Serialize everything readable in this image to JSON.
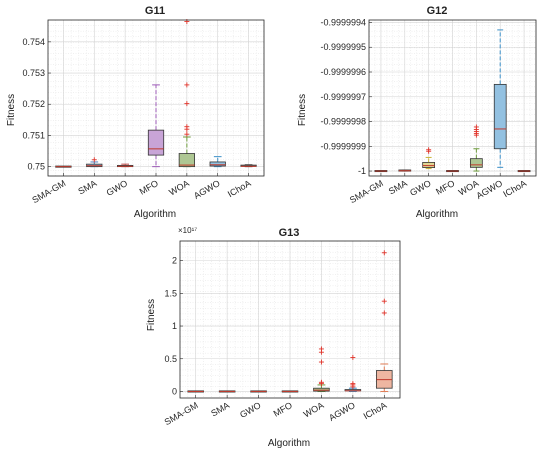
{
  "chart_data": [
    {
      "id": "g11",
      "type": "boxplot",
      "title": "G11",
      "xlabel": "Algorithm",
      "ylabel": "Fitness",
      "categories": [
        "SMA-GM",
        "SMA",
        "GWO",
        "MFO",
        "WOA",
        "AGWO",
        "IChoA"
      ],
      "ylim": [
        0.7497,
        0.7547
      ],
      "yticks": [
        0.75,
        0.751,
        0.752,
        0.753,
        0.754
      ],
      "ytick_labels": [
        "0.75",
        "0.751",
        "0.752",
        "0.753",
        "0.754"
      ],
      "grid": true,
      "boxes": [
        {
          "min": 0.75,
          "q1": 0.75,
          "median": 0.75,
          "q3": 0.75,
          "max": 0.75,
          "outliers": [],
          "color": "#3f3f3f"
        },
        {
          "min": 0.75,
          "q1": 0.75,
          "median": 0.75003,
          "q3": 0.75008,
          "max": 0.75015,
          "outliers": [
            0.75022
          ],
          "color": "#4f7fbf"
        },
        {
          "min": 0.75,
          "q1": 0.75,
          "median": 0.75001,
          "q3": 0.75004,
          "max": 0.75008,
          "outliers": [],
          "color": "#c0504d"
        },
        {
          "min": 0.75,
          "q1": 0.75037,
          "median": 0.75057,
          "q3": 0.75117,
          "max": 0.75262,
          "outliers": [],
          "color": "#9b59b6"
        },
        {
          "min": 0.75,
          "q1": 0.75,
          "median": 0.75005,
          "q3": 0.75042,
          "max": 0.75095,
          "outliers": [
            0.75104,
            0.7512,
            0.75128,
            0.75202,
            0.75262,
            0.75465
          ],
          "color": "#6c9a3a"
        },
        {
          "min": 0.75,
          "q1": 0.75002,
          "median": 0.75006,
          "q3": 0.75015,
          "max": 0.75032,
          "outliers": [],
          "color": "#3a8fc8"
        },
        {
          "min": 0.75,
          "q1": 0.75,
          "median": 0.75001,
          "q3": 0.75003,
          "max": 0.75006,
          "outliers": [],
          "color": "#3f3f3f"
        }
      ]
    },
    {
      "id": "g12",
      "type": "boxplot",
      "title": "G12",
      "xlabel": "Algorithm",
      "ylabel": "Fitness",
      "categories": [
        "SMA-GM",
        "SMA",
        "GWO",
        "MFO",
        "WOA",
        "AGWO",
        "IChoA"
      ],
      "ylim": [
        -1.00000002,
        -0.99999939
      ],
      "yticks": [
        -1.0,
        -0.9999999,
        -0.9999998,
        -0.9999997,
        -0.9999996,
        -0.9999995,
        -0.9999994
      ],
      "ytick_labels": [
        "-1",
        "-0.9999999",
        "-0.9999998",
        "-0.9999997",
        "-0.9999996",
        "-0.9999995",
        "-0.9999994"
      ],
      "grid": true,
      "boxes": [
        {
          "min": -1.0,
          "q1": -1.0,
          "median": -1.0,
          "q3": -1.0,
          "max": -1.0,
          "outliers": [],
          "color": "#3f3f3f"
        },
        {
          "min": -1.0,
          "q1": -1.0,
          "median": -0.999999999,
          "q3": -0.999999998,
          "max": -0.999999996,
          "outliers": [],
          "color": "#c0504d"
        },
        {
          "min": -0.99999999,
          "q1": -0.999999986,
          "median": -0.999999978,
          "q3": -0.999999965,
          "max": -0.999999945,
          "outliers": [
            -0.99999992,
            -0.999999914
          ],
          "color": "#c8b438"
        },
        {
          "min": -1.0,
          "q1": -1.0,
          "median": -1.0,
          "q3": -1.0,
          "max": -1.0,
          "outliers": [],
          "color": "#3f3f3f"
        },
        {
          "min": -1.0,
          "q1": -0.999999985,
          "median": -0.999999975,
          "q3": -0.99999995,
          "max": -0.99999991,
          "outliers": [
            -0.999999855,
            -0.999999848,
            -0.99999984,
            -0.999999832,
            -0.999999822
          ],
          "color": "#6c9a3a"
        },
        {
          "min": -0.999999985,
          "q1": -0.99999991,
          "median": -0.99999983,
          "q3": -0.99999965,
          "max": -0.99999943,
          "outliers": [],
          "color": "#3a8fc8"
        },
        {
          "min": -1.0,
          "q1": -1.0,
          "median": -1.0,
          "q3": -1.0,
          "max": -1.0,
          "outliers": [],
          "color": "#3f3f3f"
        }
      ]
    },
    {
      "id": "g13",
      "type": "boxplot",
      "title": "G13",
      "xlabel": "Algorithm",
      "ylabel": "Fitness",
      "exponent_label": "×10¹⁷",
      "categories": [
        "SMA-GM",
        "SMA",
        "GWO",
        "MFO",
        "WOA",
        "AGWO",
        "IChoA"
      ],
      "ylim": [
        -0.1,
        2.3
      ],
      "yticks": [
        0,
        0.5,
        1,
        1.5,
        2
      ],
      "ytick_labels": [
        "0",
        "0.5",
        "1",
        "1.5",
        "2"
      ],
      "grid": true,
      "boxes": [
        {
          "min": 0,
          "q1": 0,
          "median": 0,
          "q3": 0,
          "max": 0,
          "outliers": [],
          "color": "#3f3f3f"
        },
        {
          "min": 0,
          "q1": 0,
          "median": 0,
          "q3": 0,
          "max": 0,
          "outliers": [],
          "color": "#3f3f3f"
        },
        {
          "min": 0,
          "q1": 0,
          "median": 0,
          "q3": 0,
          "max": 0,
          "outliers": [],
          "color": "#3f3f3f"
        },
        {
          "min": 0,
          "q1": 0,
          "median": 0,
          "q3": 0,
          "max": 0,
          "outliers": [],
          "color": "#3f3f3f"
        },
        {
          "min": 0,
          "q1": 0.005,
          "median": 0.02,
          "q3": 0.05,
          "max": 0.1,
          "outliers": [
            0.12,
            0.14,
            0.45,
            0.6,
            0.65
          ],
          "color": "#6c9a3a"
        },
        {
          "min": 0,
          "q1": 0.003,
          "median": 0.01,
          "q3": 0.02,
          "max": 0.05,
          "outliers": [
            0.07,
            0.1,
            0.12,
            0.52
          ],
          "color": "#3a8fc8"
        },
        {
          "min": 0,
          "q1": 0.05,
          "median": 0.18,
          "q3": 0.32,
          "max": 0.42,
          "outliers": [
            1.2,
            1.38,
            2.12
          ],
          "color": "#e07b54"
        }
      ]
    }
  ]
}
